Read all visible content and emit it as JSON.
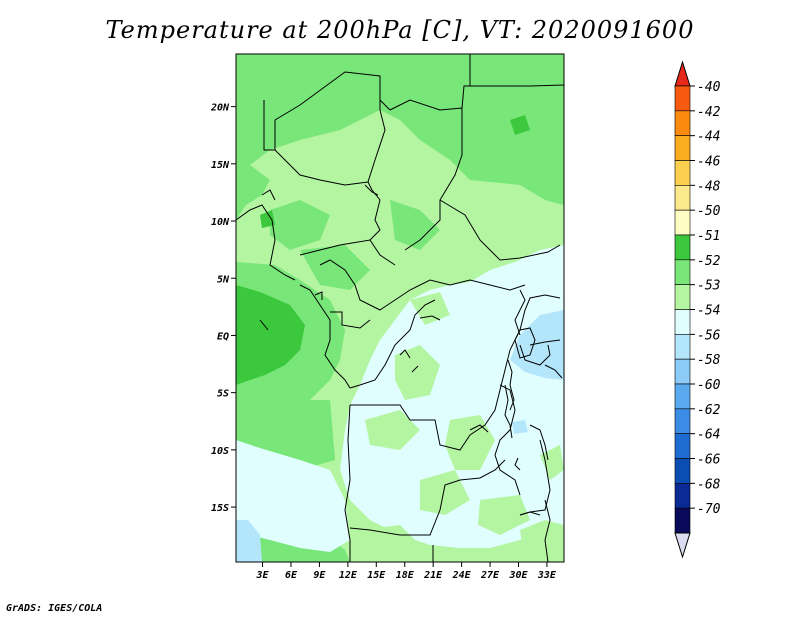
{
  "title": "Temperature at 200hPa [C], VT: 2020091600",
  "credit": "GrADS: IGES/COLA",
  "map": {
    "lat_labels": [
      "20N",
      "15N",
      "10N",
      "5N",
      "EQ",
      "5S",
      "10S",
      "15S"
    ],
    "lat_values": [
      20,
      15,
      10,
      5,
      0,
      -5,
      -10,
      -15
    ],
    "lon_labels": [
      "3E",
      "6E",
      "9E",
      "12E",
      "15E",
      "18E",
      "21E",
      "24E",
      "27E",
      "30E",
      "33E"
    ],
    "lon_values": [
      3,
      6,
      9,
      12,
      15,
      18,
      21,
      24,
      27,
      30,
      33
    ],
    "lat_range": [
      -19.8,
      24.6
    ],
    "lon_range": [
      0.2,
      34.8
    ]
  },
  "legend": {
    "labels": [
      "-40",
      "-42",
      "-44",
      "-46",
      "-48",
      "-50",
      "-51",
      "-52",
      "-53",
      "-54",
      "-56",
      "-58",
      "-60",
      "-62",
      "-64",
      "-66",
      "-68",
      "-70"
    ],
    "colors": [
      "#e8281a",
      "#f55a0f",
      "#fa8b0f",
      "#faad1f",
      "#fcd04f",
      "#fce98b",
      "#fefec4",
      "#3cc83c",
      "#78e678",
      "#b4f5a2",
      "#e1fefe",
      "#b4e6fb",
      "#8ccaf8",
      "#5aaaf0",
      "#3c8ce6",
      "#1e6cd2",
      "#0a4eb4",
      "#0a2a96",
      "#0a0a5a",
      "#dcdcf0"
    ]
  }
}
